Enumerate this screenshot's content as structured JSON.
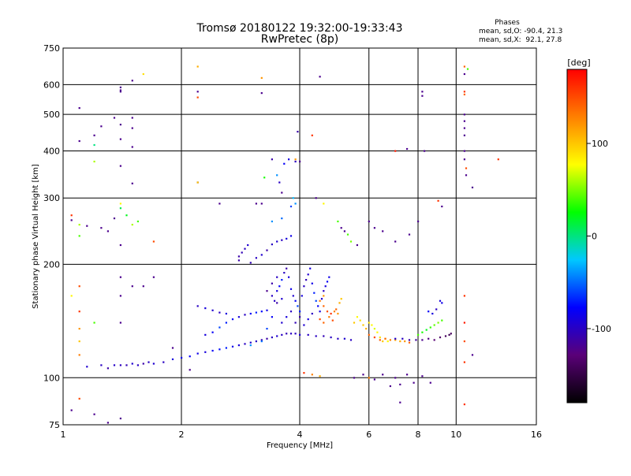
{
  "chart_data": {
    "type": "scatter",
    "title": "Tromsø 20180122 19:32:00-19:33:43",
    "subtitle": "RwPretec (8p)",
    "stats": {
      "header": "Phases",
      "line_o": "mean, sd,O: -90.4, 21.3",
      "line_x": "mean, sd,X:  92.1, 27.8"
    },
    "xlabel": "Frequency [MHz]",
    "ylabel": "Stationary phase Virtual Height [km]",
    "x_scale": "log",
    "y_scale": "log",
    "xlim": [
      1,
      16
    ],
    "ylim": [
      75,
      750
    ],
    "x_ticks": [
      1,
      2,
      4,
      6,
      8,
      10,
      16
    ],
    "x_tick_labels": [
      "1",
      "2",
      "4",
      "6",
      "8",
      "10",
      "16"
    ],
    "y_ticks": [
      75,
      100,
      200,
      300,
      400,
      500,
      600,
      750
    ],
    "y_tick_labels": [
      "75",
      "100",
      "200",
      "300",
      "400",
      "500",
      "600",
      "750"
    ],
    "grid": true,
    "colorbar": {
      "label": "[deg]",
      "range": [
        -180,
        180
      ],
      "ticks": [
        100,
        0,
        -100
      ],
      "tick_labels": [
        "100",
        "0",
        "-100"
      ],
      "colors": [
        "#000000",
        "#5a0078",
        "#0000ff",
        "#00c8ff",
        "#00ff00",
        "#ffff00",
        "#ff8000",
        "#ff0000"
      ]
    },
    "points": [
      [
        1.15,
        107,
        -95
      ],
      [
        1.25,
        108,
        -100
      ],
      [
        1.3,
        106,
        -110
      ],
      [
        1.35,
        108,
        -98
      ],
      [
        1.4,
        108,
        -102
      ],
      [
        1.45,
        108,
        -105
      ],
      [
        1.5,
        109,
        -95
      ],
      [
        1.55,
        108,
        -100
      ],
      [
        1.6,
        109,
        -110
      ],
      [
        1.65,
        110,
        -100
      ],
      [
        1.7,
        109,
        -95
      ],
      [
        1.8,
        110,
        -100
      ],
      [
        1.9,
        112,
        -90
      ],
      [
        2.0,
        113,
        -85
      ],
      [
        2.1,
        114,
        -80
      ],
      [
        2.2,
        116,
        -85
      ],
      [
        2.3,
        117,
        -90
      ],
      [
        2.4,
        118,
        -80
      ],
      [
        2.5,
        119,
        -75
      ],
      [
        2.6,
        120,
        -70
      ],
      [
        2.7,
        121,
        -85
      ],
      [
        2.8,
        122,
        -90
      ],
      [
        2.9,
        123,
        -100
      ],
      [
        3.0,
        124,
        -95
      ],
      [
        3.1,
        125,
        -100
      ],
      [
        3.2,
        126,
        -105
      ],
      [
        3.3,
        127,
        -110
      ],
      [
        3.4,
        128,
        -100
      ],
      [
        3.5,
        129,
        -95
      ],
      [
        3.6,
        130,
        -100
      ],
      [
        3.7,
        131,
        -105
      ],
      [
        3.8,
        131,
        -100
      ],
      [
        3.9,
        131,
        -100
      ],
      [
        4.0,
        130,
        -95
      ],
      [
        4.2,
        130,
        -100
      ],
      [
        4.4,
        129,
        -100
      ],
      [
        4.6,
        129,
        -105
      ],
      [
        4.8,
        128,
        -100
      ],
      [
        5.0,
        127,
        -100
      ],
      [
        5.2,
        127,
        -95
      ],
      [
        5.4,
        126,
        -100
      ],
      [
        2.3,
        130,
        -90
      ],
      [
        2.4,
        132,
        -80
      ],
      [
        2.5,
        136,
        -60
      ],
      [
        2.6,
        140,
        -70
      ],
      [
        2.7,
        143,
        -80
      ],
      [
        2.8,
        145,
        -90
      ],
      [
        2.9,
        147,
        -100
      ],
      [
        3.0,
        148,
        -80
      ],
      [
        3.1,
        149,
        -70
      ],
      [
        3.2,
        150,
        -75
      ],
      [
        3.3,
        151,
        -85
      ],
      [
        2.6,
        148,
        -90
      ],
      [
        2.5,
        149,
        -100
      ],
      [
        2.4,
        151,
        -95
      ],
      [
        2.3,
        153,
        -90
      ],
      [
        2.2,
        155,
        -100
      ],
      [
        3.0,
        122,
        -40
      ],
      [
        3.2,
        125,
        -50
      ],
      [
        3.3,
        135,
        -60
      ],
      [
        3.4,
        145,
        -80
      ],
      [
        3.45,
        160,
        -100
      ],
      [
        3.5,
        170,
        -90
      ],
      [
        3.55,
        175,
        -80
      ],
      [
        3.6,
        182,
        -70
      ],
      [
        3.65,
        190,
        -100
      ],
      [
        3.7,
        195,
        -110
      ],
      [
        3.75,
        185,
        -90
      ],
      [
        3.8,
        172,
        -85
      ],
      [
        3.85,
        165,
        -95
      ],
      [
        3.9,
        160,
        -80
      ],
      [
        3.95,
        155,
        -60
      ],
      [
        4.0,
        150,
        -70
      ],
      [
        4.05,
        165,
        -90
      ],
      [
        4.1,
        175,
        -100
      ],
      [
        4.15,
        182,
        -105
      ],
      [
        4.2,
        188,
        -95
      ],
      [
        4.25,
        195,
        -90
      ],
      [
        4.3,
        178,
        -85
      ],
      [
        4.35,
        168,
        -70
      ],
      [
        4.4,
        160,
        -60
      ],
      [
        4.45,
        155,
        -80
      ],
      [
        4.5,
        150,
        -90
      ],
      [
        4.55,
        162,
        -95
      ],
      [
        4.6,
        170,
        -100
      ],
      [
        4.65,
        175,
        -90
      ],
      [
        4.7,
        180,
        -80
      ],
      [
        4.75,
        185,
        -85
      ],
      [
        3.6,
        140,
        -95
      ],
      [
        3.7,
        145,
        -90
      ],
      [
        3.8,
        150,
        -100
      ],
      [
        3.9,
        140,
        -105
      ],
      [
        4.0,
        145,
        -110
      ],
      [
        4.1,
        138,
        -95
      ],
      [
        4.2,
        143,
        -90
      ],
      [
        4.3,
        148,
        -100
      ],
      [
        3.4,
        165,
        -100
      ],
      [
        3.5,
        158,
        -110
      ],
      [
        3.6,
        162,
        -95
      ],
      [
        3.3,
        170,
        -120
      ],
      [
        3.4,
        178,
        -110
      ],
      [
        3.5,
        185,
        -100
      ],
      [
        2.8,
        210,
        -110
      ],
      [
        2.85,
        215,
        -105
      ],
      [
        2.9,
        220,
        -100
      ],
      [
        2.95,
        225,
        -95
      ],
      [
        2.8,
        205,
        -110
      ],
      [
        3.0,
        202,
        -105
      ],
      [
        3.1,
        208,
        -100
      ],
      [
        3.2,
        212,
        -95
      ],
      [
        3.3,
        218,
        -110
      ],
      [
        3.4,
        226,
        -100
      ],
      [
        3.5,
        230,
        -95
      ],
      [
        3.6,
        232,
        -100
      ],
      [
        3.7,
        234,
        -90
      ],
      [
        3.8,
        238,
        -85
      ],
      [
        3.4,
        260,
        -40
      ],
      [
        3.6,
        265,
        -50
      ],
      [
        3.8,
        285,
        -60
      ],
      [
        3.9,
        290,
        -40
      ],
      [
        3.85,
        300,
        -30
      ],
      [
        3.4,
        380,
        -110
      ],
      [
        3.5,
        345,
        -40
      ],
      [
        3.55,
        330,
        -100
      ],
      [
        3.65,
        370,
        -80
      ],
      [
        3.75,
        380,
        -90
      ],
      [
        3.9,
        375,
        -100
      ],
      [
        3.95,
        450,
        -110
      ],
      [
        3.25,
        340,
        30
      ],
      [
        4.5,
        160,
        130
      ],
      [
        4.6,
        155,
        140
      ],
      [
        4.7,
        150,
        150
      ],
      [
        4.8,
        148,
        160
      ],
      [
        4.5,
        143,
        150
      ],
      [
        4.6,
        140,
        140
      ],
      [
        4.75,
        145,
        130
      ],
      [
        4.85,
        142,
        150
      ],
      [
        4.9,
        150,
        130
      ],
      [
        4.95,
        152,
        140
      ],
      [
        5.0,
        148,
        120
      ],
      [
        5.05,
        158,
        110
      ],
      [
        5.1,
        162,
        100
      ],
      [
        4.6,
        165,
        120
      ],
      [
        5.5,
        140,
        100
      ],
      [
        5.6,
        145,
        80
      ],
      [
        5.7,
        142,
        90
      ],
      [
        5.8,
        138,
        100
      ],
      [
        5.9,
        135,
        110
      ],
      [
        6.0,
        140,
        90
      ],
      [
        6.1,
        138,
        80
      ],
      [
        6.2,
        135,
        70
      ],
      [
        6.3,
        132,
        80
      ],
      [
        6.4,
        128,
        90
      ],
      [
        6.5,
        125,
        100
      ],
      [
        6.6,
        127,
        90
      ],
      [
        6.7,
        125,
        80
      ],
      [
        6.0,
        130,
        140
      ],
      [
        6.2,
        128,
        150
      ],
      [
        6.4,
        126,
        145
      ],
      [
        6.6,
        127,
        140
      ],
      [
        6.8,
        126,
        130
      ],
      [
        7.0,
        126,
        120
      ],
      [
        7.2,
        125,
        110
      ],
      [
        7.4,
        125,
        120
      ],
      [
        7.6,
        124,
        140
      ],
      [
        7.0,
        127,
        -95
      ],
      [
        7.3,
        127,
        -100
      ],
      [
        7.6,
        126,
        -110
      ],
      [
        7.9,
        126,
        -115
      ],
      [
        8.2,
        126,
        -120
      ],
      [
        8.5,
        127,
        -125
      ],
      [
        8.8,
        126,
        -130
      ],
      [
        9.1,
        128,
        -135
      ],
      [
        9.4,
        129,
        -140
      ],
      [
        9.6,
        130,
        -145
      ],
      [
        9.7,
        131,
        -140
      ],
      [
        8.0,
        130,
        40
      ],
      [
        8.2,
        132,
        30
      ],
      [
        8.4,
        134,
        20
      ],
      [
        8.6,
        136,
        35
      ],
      [
        8.8,
        138,
        45
      ],
      [
        9.0,
        140,
        50
      ],
      [
        9.2,
        142,
        40
      ],
      [
        8.5,
        150,
        -80
      ],
      [
        8.7,
        148,
        -90
      ],
      [
        8.9,
        152,
        -100
      ],
      [
        9.1,
        160,
        -90
      ],
      [
        9.2,
        158,
        -85
      ],
      [
        1.4,
        590,
        -120
      ],
      [
        1.4,
        580,
        -120
      ],
      [
        1.4,
        575,
        -120
      ],
      [
        1.5,
        615,
        -120
      ],
      [
        1.6,
        640,
        90
      ],
      [
        2.2,
        670,
        110
      ],
      [
        2.2,
        575,
        -120
      ],
      [
        2.2,
        555,
        150
      ],
      [
        3.2,
        625,
        120
      ],
      [
        3.2,
        570,
        -120
      ],
      [
        4.5,
        630,
        -120
      ],
      [
        8.2,
        575,
        -120
      ],
      [
        8.2,
        560,
        -120
      ],
      [
        10.5,
        670,
        140
      ],
      [
        10.5,
        640,
        -120
      ],
      [
        10.5,
        575,
        160
      ],
      [
        10.5,
        565,
        140
      ],
      [
        10.7,
        660,
        40
      ],
      [
        1.1,
        520,
        -120
      ],
      [
        1.2,
        440,
        -120
      ],
      [
        1.25,
        465,
        -120
      ],
      [
        1.35,
        490,
        -120
      ],
      [
        1.4,
        470,
        -120
      ],
      [
        1.4,
        430,
        -120
      ],
      [
        1.5,
        490,
        -120
      ],
      [
        1.5,
        460,
        -120
      ],
      [
        1.5,
        410,
        -120
      ],
      [
        1.1,
        425,
        -120
      ],
      [
        1.2,
        415,
        0
      ],
      [
        1.4,
        365,
        -120
      ],
      [
        1.5,
        328,
        -120
      ],
      [
        1.2,
        375,
        60
      ],
      [
        1.05,
        270,
        160
      ],
      [
        1.05,
        262,
        -120
      ],
      [
        1.1,
        255,
        60
      ],
      [
        1.15,
        253,
        -120
      ],
      [
        1.1,
        238,
        40
      ],
      [
        1.25,
        250,
        -120
      ],
      [
        1.3,
        245,
        -120
      ],
      [
        1.35,
        265,
        -120
      ],
      [
        1.4,
        290,
        80
      ],
      [
        1.4,
        282,
        10
      ],
      [
        1.45,
        270,
        20
      ],
      [
        1.5,
        255,
        60
      ],
      [
        1.55,
        260,
        40
      ],
      [
        1.7,
        230,
        150
      ],
      [
        1.4,
        225,
        -120
      ],
      [
        2.2,
        330,
        -120
      ],
      [
        2.2,
        330,
        100
      ],
      [
        2.5,
        290,
        -120
      ],
      [
        3.1,
        290,
        -120
      ],
      [
        3.2,
        290,
        -120
      ],
      [
        3.6,
        310,
        -120
      ],
      [
        3.9,
        380,
        120
      ],
      [
        4.0,
        375,
        -120
      ],
      [
        4.3,
        440,
        160
      ],
      [
        4.4,
        300,
        -120
      ],
      [
        4.6,
        290,
        80
      ],
      [
        5.0,
        260,
        40
      ],
      [
        5.1,
        250,
        -120
      ],
      [
        5.2,
        245,
        -120
      ],
      [
        5.3,
        240,
        40
      ],
      [
        5.4,
        230,
        50
      ],
      [
        5.6,
        225,
        -120
      ],
      [
        6.0,
        260,
        -120
      ],
      [
        6.2,
        250,
        -120
      ],
      [
        6.5,
        245,
        -120
      ],
      [
        7.0,
        230,
        -120
      ],
      [
        7.6,
        240,
        -120
      ],
      [
        8.0,
        260,
        -120
      ],
      [
        9.0,
        295,
        160
      ],
      [
        9.2,
        285,
        -120
      ],
      [
        7.0,
        400,
        170
      ],
      [
        7.5,
        405,
        -120
      ],
      [
        8.3,
        400,
        -120
      ],
      [
        10.5,
        500,
        -120
      ],
      [
        10.5,
        480,
        -120
      ],
      [
        10.5,
        460,
        -120
      ],
      [
        10.5,
        440,
        -120
      ],
      [
        10.5,
        400,
        -120
      ],
      [
        10.5,
        380,
        -120
      ],
      [
        10.6,
        360,
        150
      ],
      [
        10.6,
        345,
        -120
      ],
      [
        11.0,
        320,
        -120
      ],
      [
        12.8,
        380,
        160
      ],
      [
        1.05,
        165,
        80
      ],
      [
        1.1,
        175,
        150
      ],
      [
        1.1,
        150,
        160
      ],
      [
        1.1,
        135,
        120
      ],
      [
        1.1,
        125,
        100
      ],
      [
        1.1,
        115,
        130
      ],
      [
        1.2,
        140,
        40
      ],
      [
        1.4,
        140,
        -120
      ],
      [
        1.4,
        185,
        -120
      ],
      [
        1.4,
        165,
        -120
      ],
      [
        1.5,
        175,
        -120
      ],
      [
        1.6,
        175,
        -120
      ],
      [
        1.7,
        185,
        -120
      ],
      [
        1.9,
        120,
        -120
      ],
      [
        2.1,
        105,
        -120
      ],
      [
        4.1,
        103,
        160
      ],
      [
        4.3,
        102,
        130
      ],
      [
        4.5,
        101,
        110
      ],
      [
        5.5,
        100,
        -120
      ],
      [
        5.8,
        102,
        -120
      ],
      [
        6.0,
        100,
        130
      ],
      [
        6.2,
        99,
        -120
      ],
      [
        6.5,
        102,
        -120
      ],
      [
        6.8,
        95,
        -120
      ],
      [
        7.0,
        100,
        -120
      ],
      [
        7.2,
        96,
        -120
      ],
      [
        7.5,
        102,
        -120
      ],
      [
        7.8,
        97,
        -120
      ],
      [
        8.2,
        101,
        -120
      ],
      [
        8.6,
        97,
        -120
      ],
      [
        10.5,
        110,
        160
      ],
      [
        10.5,
        165,
        160
      ],
      [
        10.5,
        140,
        170
      ],
      [
        10.5,
        125,
        150
      ],
      [
        11.0,
        115,
        -120
      ],
      [
        1.05,
        82,
        -120
      ],
      [
        1.1,
        88,
        150
      ],
      [
        1.2,
        80,
        -120
      ],
      [
        1.3,
        76,
        -120
      ],
      [
        1.4,
        78,
        -120
      ],
      [
        7.2,
        86,
        -120
      ],
      [
        10.5,
        85,
        160
      ]
    ]
  }
}
